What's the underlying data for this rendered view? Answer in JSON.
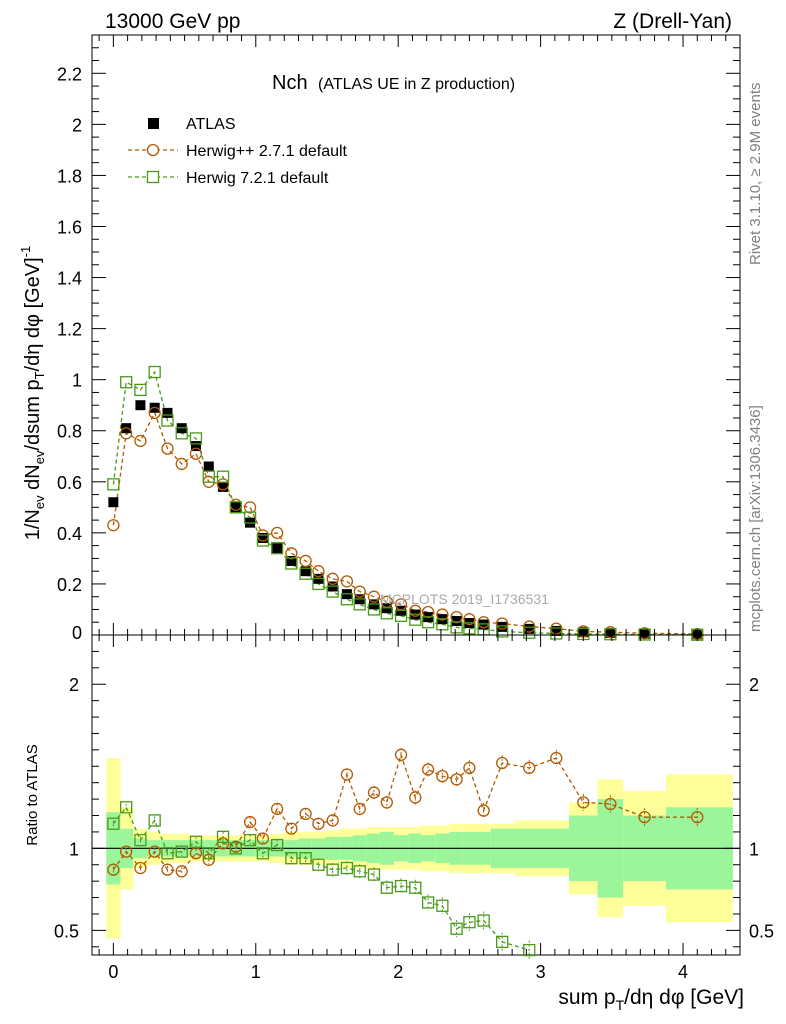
{
  "header": {
    "left": "13000 GeV pp",
    "right": "Z (Drell-Yan)"
  },
  "side_labels": {
    "rivet": "Rivet 3.1.10, ≥ 2.9M events",
    "source": "mcplots.cern.ch [arXiv:1306.3436]"
  },
  "watermark": "MCPLOTS 2019_I1736531",
  "chart_data": {
    "type": "scatter",
    "title_main": "Nch",
    "title_sub": "(ATLAS UE in Z production)",
    "xlabel": "sum p_T/dη dφ [GeV]",
    "ylabel_top": "1/N_ev dN_ev/dsum p_T/dη dφ [GeV]^-1",
    "ylabel_bottom": "Ratio to ATLAS",
    "xlim": [
      -0.15,
      4.4
    ],
    "ylim_top": [
      0,
      2.35
    ],
    "ylim_bottom": [
      0.35,
      2.3
    ],
    "x_ticks": [
      "0",
      "1",
      "2",
      "3",
      "4"
    ],
    "y_ticks_top": [
      "0",
      "0.2",
      "0.4",
      "0.6",
      "0.8",
      "1",
      "1.2",
      "1.4",
      "1.6",
      "1.8",
      "2",
      "2.2"
    ],
    "y_ticks_bottom": [
      "0.5",
      "1",
      "2"
    ],
    "legend": [
      "ATLAS",
      "Herwig++ 2.7.1 default",
      "Herwig 7.2.1 default"
    ],
    "colors": {
      "atlas": "#000000",
      "herwigpp": "#b35900",
      "herwig7": "#4a9a1a",
      "band_inner": "#9bf59b",
      "band_outer": "#ffff99"
    },
    "x": [
      0.0,
      0.09,
      0.19,
      0.29,
      0.38,
      0.48,
      0.58,
      0.67,
      0.77,
      0.86,
      0.96,
      1.05,
      1.15,
      1.25,
      1.35,
      1.44,
      1.54,
      1.64,
      1.73,
      1.83,
      1.92,
      2.02,
      2.12,
      2.21,
      2.31,
      2.41,
      2.5,
      2.6,
      2.73,
      2.92,
      3.11,
      3.3,
      3.49,
      3.73,
      4.1
    ],
    "atlas": [
      0.52,
      0.81,
      0.9,
      0.89,
      0.87,
      0.81,
      0.74,
      0.66,
      0.58,
      0.5,
      0.44,
      0.38,
      0.34,
      0.29,
      0.25,
      0.22,
      0.19,
      0.16,
      0.14,
      0.12,
      0.105,
      0.095,
      0.08,
      0.07,
      0.062,
      0.055,
      0.047,
      0.041,
      0.032,
      0.024,
      0.016,
      0.011,
      0.008,
      0.005,
      0.003
    ],
    "herwigpp": [
      0.43,
      0.79,
      0.76,
      0.87,
      0.73,
      0.67,
      0.71,
      0.6,
      0.59,
      0.51,
      0.5,
      0.39,
      0.4,
      0.32,
      0.29,
      0.25,
      0.22,
      0.21,
      0.17,
      0.15,
      0.13,
      0.12,
      0.095,
      0.09,
      0.08,
      0.07,
      0.062,
      0.05,
      0.045,
      0.033,
      0.025,
      0.014,
      0.011,
      0.007,
      0.004
    ],
    "herwig7": [
      0.59,
      0.99,
      0.96,
      1.03,
      0.84,
      0.79,
      0.77,
      0.62,
      0.62,
      0.5,
      0.46,
      0.37,
      0.34,
      0.28,
      0.24,
      0.2,
      0.17,
      0.14,
      0.12,
      0.1,
      0.085,
      0.075,
      0.06,
      0.05,
      0.042,
      0.03,
      0.026,
      0.022,
      0.014,
      0.009,
      0.006,
      0.004,
      0.003,
      0.002,
      0.001
    ],
    "ratio_herwigpp": [
      0.87,
      0.98,
      0.88,
      0.98,
      0.87,
      0.86,
      0.97,
      0.93,
      1.03,
      1.01,
      1.16,
      1.06,
      1.24,
      1.12,
      1.21,
      1.15,
      1.17,
      1.45,
      1.24,
      1.34,
      1.28,
      1.57,
      1.31,
      1.48,
      1.44,
      1.42,
      1.49,
      1.23,
      1.52,
      1.49,
      1.55,
      1.28,
      1.27,
      1.19,
      1.19
    ],
    "ratio_herwig7": [
      1.15,
      1.25,
      1.05,
      1.17,
      0.97,
      0.98,
      1.04,
      0.97,
      1.07,
      1.0,
      1.05,
      0.97,
      1.02,
      0.94,
      0.94,
      0.9,
      0.87,
      0.88,
      0.86,
      0.84,
      0.76,
      0.77,
      0.76,
      0.67,
      0.65,
      0.51,
      0.55,
      0.56,
      0.43,
      0.38,
      null,
      null,
      null,
      null,
      null
    ],
    "band_edges": [
      -0.05,
      0.05,
      0.14,
      0.24,
      0.33,
      0.43,
      0.53,
      0.62,
      0.72,
      0.81,
      0.91,
      1.0,
      1.1,
      1.2,
      1.3,
      1.39,
      1.49,
      1.59,
      1.68,
      1.78,
      1.87,
      1.97,
      2.07,
      2.16,
      2.26,
      2.36,
      2.45,
      2.55,
      2.65,
      2.82,
      3.02,
      3.2,
      3.4,
      3.58,
      3.88,
      4.35
    ],
    "band_inner": [
      0.22,
      0.12,
      0.06,
      0.05,
      0.05,
      0.05,
      0.05,
      0.05,
      0.05,
      0.05,
      0.05,
      0.05,
      0.05,
      0.05,
      0.06,
      0.06,
      0.07,
      0.07,
      0.08,
      0.09,
      0.1,
      0.08,
      0.09,
      0.08,
      0.09,
      0.1,
      0.1,
      0.1,
      0.12,
      0.12,
      0.12,
      0.2,
      0.3,
      0.2,
      0.25
    ],
    "band_outer": [
      0.55,
      0.25,
      0.12,
      0.1,
      0.09,
      0.09,
      0.08,
      0.08,
      0.08,
      0.08,
      0.08,
      0.08,
      0.09,
      0.1,
      0.1,
      0.1,
      0.11,
      0.12,
      0.12,
      0.13,
      0.13,
      0.13,
      0.13,
      0.14,
      0.14,
      0.15,
      0.15,
      0.15,
      0.15,
      0.17,
      0.17,
      0.28,
      0.42,
      0.35,
      0.45
    ]
  }
}
